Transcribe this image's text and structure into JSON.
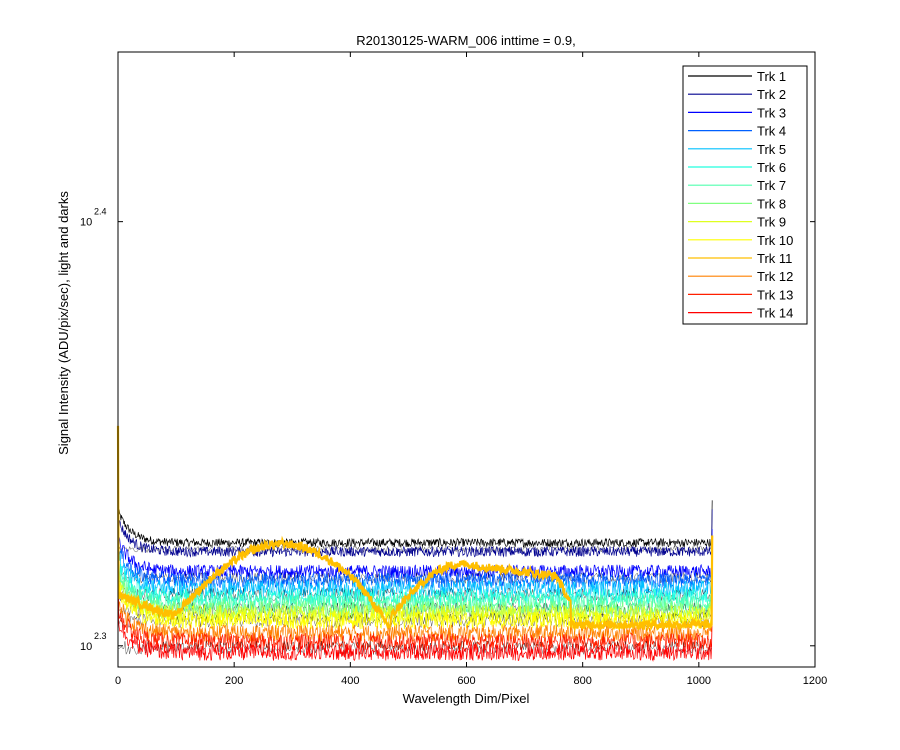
{
  "chart_data": {
    "type": "line",
    "title": "R20130125-WARM_006 inttime = 0.9,",
    "xlabel": "Wavelength Dim/Pixel",
    "ylabel": "Signal Intensity (ADU/pix/sec), light and darks",
    "xlim": [
      0,
      1200
    ],
    "ylim_log10": [
      2.295,
      2.44
    ],
    "y_scale": "log",
    "x_ticks": [
      0,
      200,
      400,
      600,
      800,
      1000,
      1200
    ],
    "x_tick_labels": [
      "0",
      "200",
      "400",
      "600",
      "800",
      "1000",
      "1200"
    ],
    "y_ticks_log10": [
      2.3,
      2.4
    ],
    "y_tick_base": "10",
    "y_tick_exponents": [
      "2.3",
      "2.4"
    ],
    "grid": false,
    "legend_position": "top-right",
    "series": [
      {
        "name": "Trk 1",
        "color": "#000000",
        "level_log10": 2.3243,
        "noise": 0.001
      },
      {
        "name": "Trk 2",
        "color": "#00008f",
        "level_log10": 2.3222,
        "noise": 0.0012
      },
      {
        "name": "Trk 3",
        "color": "#0000ff",
        "level_log10": 2.3175,
        "noise": 0.0016
      },
      {
        "name": "Trk 4",
        "color": "#0060ff",
        "level_log10": 2.3155,
        "noise": 0.0018
      },
      {
        "name": "Trk 5",
        "color": "#00c0ff",
        "level_log10": 2.3135,
        "noise": 0.002
      },
      {
        "name": "Trk 6",
        "color": "#20ffdf",
        "level_log10": 2.3115,
        "noise": 0.002
      },
      {
        "name": "Trk 7",
        "color": "#50ffaf",
        "level_log10": 2.31,
        "noise": 0.0021
      },
      {
        "name": "Trk 8",
        "color": "#80ff80",
        "level_log10": 2.3085,
        "noise": 0.0021
      },
      {
        "name": "Trk 9",
        "color": "#dfff20",
        "level_log10": 2.3075,
        "noise": 0.0021
      },
      {
        "name": "Trk 10",
        "color": "#ffff00",
        "level_log10": 2.306,
        "noise": 0.0021
      },
      {
        "name": "Trk 11",
        "color": "#ffbf00",
        "level_log10": 2.316,
        "noise": 0.001,
        "shape": "arch"
      },
      {
        "name": "Trk 12",
        "color": "#ff8000",
        "level_log10": 2.303,
        "noise": 0.002
      },
      {
        "name": "Trk 13",
        "color": "#ff2000",
        "level_log10": 2.301,
        "noise": 0.002
      },
      {
        "name": "Trk 14",
        "color": "#ff0000",
        "level_log10": 2.2985,
        "noise": 0.002
      }
    ]
  }
}
